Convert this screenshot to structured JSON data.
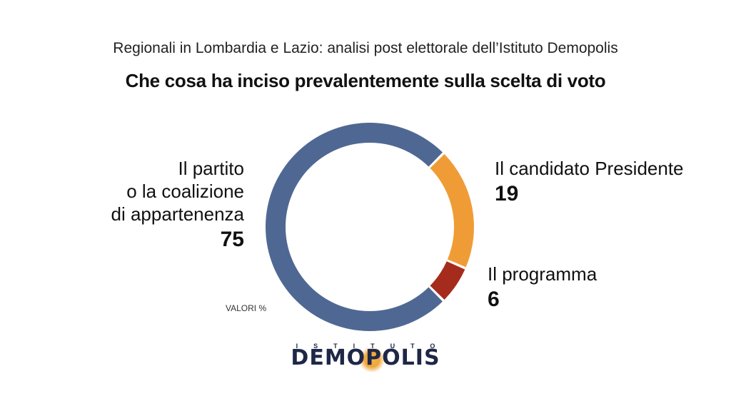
{
  "header": {
    "subtitle": "Regionali in Lombardia e Lazio: analisi post elettorale dell’Istituto Demopolis",
    "title": "Che cosa ha inciso prevalentemente sulla scelta di voto"
  },
  "chart_data": {
    "type": "pie",
    "style": "donut",
    "slices": [
      {
        "label": "Il partito o la coalizione di appartenenza",
        "value": 75,
        "color": "#4f6893"
      },
      {
        "label": "Il candidato Presidente",
        "value": 19,
        "color": "#f09c36"
      },
      {
        "label": "Il programma",
        "value": 6,
        "color": "#a52c1c"
      }
    ],
    "unit_note": "VALORI %"
  },
  "labels": {
    "partito": {
      "lines": [
        "Il partito",
        "o la coalizione",
        "di appartenenza"
      ],
      "value": "75"
    },
    "candidato": {
      "lines": [
        "Il candidato Presidente"
      ],
      "value": "19"
    },
    "programma": {
      "lines": [
        "Il programma"
      ],
      "value": "6"
    }
  },
  "logo": {
    "top": "ISTITUTO",
    "main": "DEMOPOLIS"
  }
}
